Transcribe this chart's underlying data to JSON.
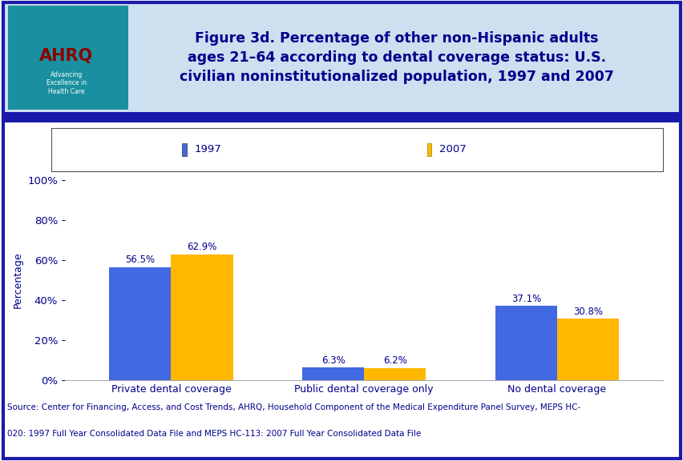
{
  "title_lines": [
    "Figure 3d. Percentage of other non-Hispanic adults",
    "ages 21–64 according to dental coverage status: U.S.",
    "civilian noninstitutionalized population, 1997 and 2007"
  ],
  "categories": [
    "Private dental coverage",
    "Public dental coverage only",
    "No dental coverage"
  ],
  "series": [
    {
      "label": "1997",
      "values": [
        56.5,
        6.3,
        37.1
      ],
      "color": "#4169E1"
    },
    {
      "label": "2007",
      "values": [
        62.9,
        6.2,
        30.8
      ],
      "color": "#FFB700"
    }
  ],
  "ylabel": "Percentage",
  "ylim": [
    0,
    100
  ],
  "yticks": [
    0,
    20,
    40,
    60,
    80,
    100
  ],
  "ytick_labels": [
    "0%",
    "20%",
    "40%",
    "60%",
    "80%",
    "100%"
  ],
  "bar_width": 0.32,
  "background_color": "#ffffff",
  "header_bg_color": "#cce0f0",
  "dark_blue": "#1a1aaa",
  "title_color": "#00008B",
  "axis_label_color": "#00008B",
  "tick_label_color": "#00008B",
  "category_label_color": "#00008B",
  "ylabel_color": "#00008B",
  "legend_label_color": "#00008B",
  "value_label_color": "#00008B",
  "source_text_line1": "Source: Center for Financing, Access, and Cost Trends, AHRQ, Household Component of the Medical Expenditure Panel Survey, MEPS HC-",
  "source_text_line2": "020: 1997 Full Year Consolidated Data File and MEPS HC-113: 2007 Full Year Consolidated Data File",
  "source_fontsize": 7.5,
  "title_fontsize": 12.5,
  "label_fontsize": 9,
  "tick_fontsize": 9.5,
  "legend_fontsize": 9.5,
  "value_fontsize": 8.5,
  "separator_color": "#1a1aaa",
  "outer_border_color": "#1a1aaa",
  "legend_box_border": "#555555"
}
